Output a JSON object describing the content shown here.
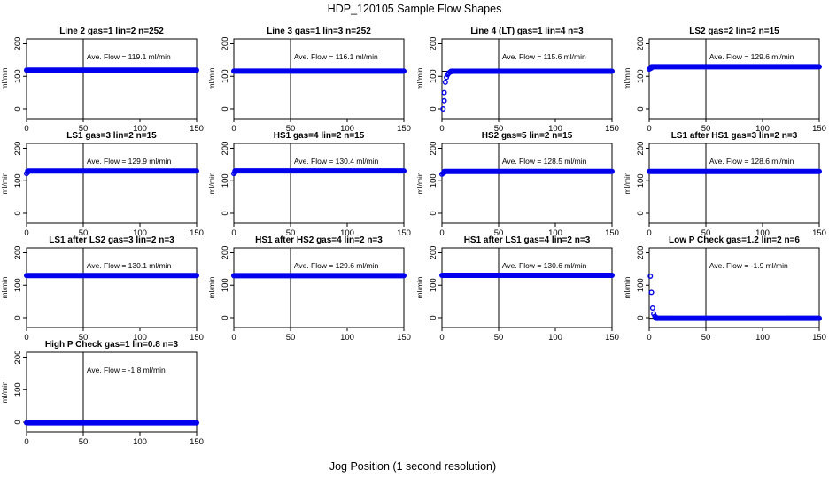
{
  "figure": {
    "title": "HDP_120105  Sample Flow Shapes",
    "xlabel": "Jog Position (1 second resolution)"
  },
  "colors": {
    "points": "#0000ee",
    "axes": "#000000"
  },
  "chart_data": [
    {
      "type": "scatter",
      "title": "Line 2 gas=1 lin=2 n=252",
      "annotation": "Ave. Flow =  119.1  ml/min",
      "ylabel": "ml/min",
      "xlim": [
        0,
        150
      ],
      "ylim": [
        -30,
        215
      ],
      "xticks": [
        0,
        50,
        100,
        150
      ],
      "yticks": [
        0,
        100,
        200
      ],
      "vline_x": 50,
      "hline_y": 119.1,
      "points": [],
      "flat": {
        "from": 0,
        "to": 150,
        "y": 119.1
      }
    },
    {
      "type": "scatter",
      "title": "Line 3 gas=1 lin=3 n=252",
      "annotation": "Ave. Flow =  116.1  ml/min",
      "ylabel": "ml/min",
      "xlim": [
        0,
        150
      ],
      "ylim": [
        -30,
        215
      ],
      "xticks": [
        0,
        50,
        100,
        150
      ],
      "yticks": [
        0,
        100,
        200
      ],
      "vline_x": 50,
      "hline_y": 116.1,
      "points": [],
      "flat": {
        "from": 0,
        "to": 150,
        "y": 116.1
      }
    },
    {
      "type": "scatter",
      "title": "Line 4 (LT) gas=1 lin=4 n=3",
      "annotation": "Ave. Flow =  115.6  ml/min",
      "ylabel": "ml/min",
      "xlim": [
        0,
        150
      ],
      "ylim": [
        -30,
        215
      ],
      "xticks": [
        0,
        50,
        100,
        150
      ],
      "yticks": [
        0,
        100,
        200
      ],
      "vline_x": 50,
      "hline_y": 115.6,
      "points": [
        [
          1,
          0
        ],
        [
          2,
          25
        ],
        [
          2,
          50
        ],
        [
          3,
          82
        ],
        [
          4,
          97
        ],
        [
          5,
          105
        ],
        [
          6,
          110
        ],
        [
          7,
          113
        ],
        [
          8,
          114
        ]
      ],
      "flat": {
        "from": 8,
        "to": 150,
        "y": 115.6
      }
    },
    {
      "type": "scatter",
      "title": "LS2 gas=2 lin=2 n=15",
      "annotation": "Ave. Flow =  129.6  ml/min",
      "ylabel": "ml/min",
      "xlim": [
        0,
        150
      ],
      "ylim": [
        -30,
        215
      ],
      "xticks": [
        0,
        50,
        100,
        150
      ],
      "yticks": [
        0,
        100,
        200
      ],
      "vline_x": 50,
      "hline_y": 129.6,
      "points": [
        [
          0,
          122
        ],
        [
          1,
          124
        ],
        [
          2,
          126
        ]
      ],
      "flat": {
        "from": 2,
        "to": 150,
        "y": 129.6
      }
    },
    {
      "type": "scatter",
      "title": "LS1 gas=3 lin=2 n=15",
      "annotation": "Ave. Flow =  129.9  ml/min",
      "ylabel": "ml/min",
      "xlim": [
        0,
        150
      ],
      "ylim": [
        -30,
        215
      ],
      "xticks": [
        0,
        50,
        100,
        150
      ],
      "yticks": [
        0,
        100,
        200
      ],
      "vline_x": 50,
      "hline_y": 129.9,
      "points": [
        [
          0,
          122
        ],
        [
          1,
          126
        ]
      ],
      "flat": {
        "from": 1,
        "to": 150,
        "y": 129.9
      }
    },
    {
      "type": "scatter",
      "title": "HS1 gas=4 lin=2 n=15",
      "annotation": "Ave. Flow =  130.4  ml/min",
      "ylabel": "ml/min",
      "xlim": [
        0,
        150
      ],
      "ylim": [
        -30,
        215
      ],
      "xticks": [
        0,
        50,
        100,
        150
      ],
      "yticks": [
        0,
        100,
        200
      ],
      "vline_x": 50,
      "hline_y": 130.4,
      "points": [
        [
          0,
          122
        ],
        [
          1,
          126
        ]
      ],
      "flat": {
        "from": 1,
        "to": 150,
        "y": 130.4
      }
    },
    {
      "type": "scatter",
      "title": "HS2 gas=5 lin=2 n=15",
      "annotation": "Ave. Flow =  128.5  ml/min",
      "ylabel": "ml/min",
      "xlim": [
        0,
        150
      ],
      "ylim": [
        -30,
        215
      ],
      "xticks": [
        0,
        50,
        100,
        150
      ],
      "yticks": [
        0,
        100,
        200
      ],
      "vline_x": 50,
      "hline_y": 128.5,
      "points": [
        [
          0,
          120
        ],
        [
          1,
          123
        ],
        [
          2,
          125
        ]
      ],
      "flat": {
        "from": 2,
        "to": 150,
        "y": 128.5
      }
    },
    {
      "type": "scatter",
      "title": "LS1 after HS1 gas=3 lin=2 n=3",
      "annotation": "Ave. Flow =  128.6  ml/min",
      "ylabel": "ml/min",
      "xlim": [
        0,
        150
      ],
      "ylim": [
        -30,
        215
      ],
      "xticks": [
        0,
        50,
        100,
        150
      ],
      "yticks": [
        0,
        100,
        200
      ],
      "vline_x": 50,
      "hline_y": 128.6,
      "points": [],
      "flat": {
        "from": 0,
        "to": 150,
        "y": 128.6
      }
    },
    {
      "type": "scatter",
      "title": "LS1 after LS2 gas=3 lin=2 n=3",
      "annotation": "Ave. Flow =  130.1  ml/min",
      "ylabel": "ml/min",
      "xlim": [
        0,
        150
      ],
      "ylim": [
        -30,
        215
      ],
      "xticks": [
        0,
        50,
        100,
        150
      ],
      "yticks": [
        0,
        100,
        200
      ],
      "vline_x": 50,
      "hline_y": 130.1,
      "points": [],
      "flat": {
        "from": 0,
        "to": 150,
        "y": 130.1
      }
    },
    {
      "type": "scatter",
      "title": "HS1 after HS2 gas=4 lin=2 n=3",
      "annotation": "Ave. Flow =  129.6  ml/min",
      "ylabel": "ml/min",
      "xlim": [
        0,
        150
      ],
      "ylim": [
        -30,
        215
      ],
      "xticks": [
        0,
        50,
        100,
        150
      ],
      "yticks": [
        0,
        100,
        200
      ],
      "vline_x": 50,
      "hline_y": 129.6,
      "points": [],
      "flat": {
        "from": 0,
        "to": 150,
        "y": 129.6
      }
    },
    {
      "type": "scatter",
      "title": "HS1 after LS1 gas=4 lin=2 n=3",
      "annotation": "Ave. Flow =  130.6  ml/min",
      "ylabel": "ml/min",
      "xlim": [
        0,
        150
      ],
      "ylim": [
        -30,
        215
      ],
      "xticks": [
        0,
        50,
        100,
        150
      ],
      "yticks": [
        0,
        100,
        200
      ],
      "vline_x": 50,
      "hline_y": 130.6,
      "points": [],
      "flat": {
        "from": 0,
        "to": 150,
        "y": 130.6
      }
    },
    {
      "type": "scatter",
      "title": "Low P Check gas=1.2 lin=2 n=6",
      "annotation": "Ave. Flow =  -1.9  ml/min",
      "ylabel": "ml/min",
      "xlim": [
        0,
        150
      ],
      "ylim": [
        -30,
        215
      ],
      "xticks": [
        0,
        50,
        100,
        150
      ],
      "yticks": [
        0,
        100,
        200
      ],
      "vline_x": 50,
      "hline_y": -1.9,
      "points": [
        [
          1,
          128
        ],
        [
          2,
          78
        ],
        [
          3,
          30
        ],
        [
          4,
          12
        ],
        [
          5,
          4
        ],
        [
          6,
          1
        ]
      ],
      "flat": {
        "from": 6,
        "to": 150,
        "y": -1.9
      }
    },
    {
      "type": "scatter",
      "title": "High P Check gas=1 lin=0.8 n=3",
      "annotation": "Ave. Flow =  -1.8  ml/min",
      "ylabel": "ml/min",
      "xlim": [
        0,
        150
      ],
      "ylim": [
        -30,
        215
      ],
      "xticks": [
        0,
        50,
        100,
        150
      ],
      "yticks": [
        0,
        100,
        200
      ],
      "vline_x": 50,
      "hline_y": -1.8,
      "points": [],
      "flat": {
        "from": 0,
        "to": 150,
        "y": -1.8
      }
    }
  ]
}
